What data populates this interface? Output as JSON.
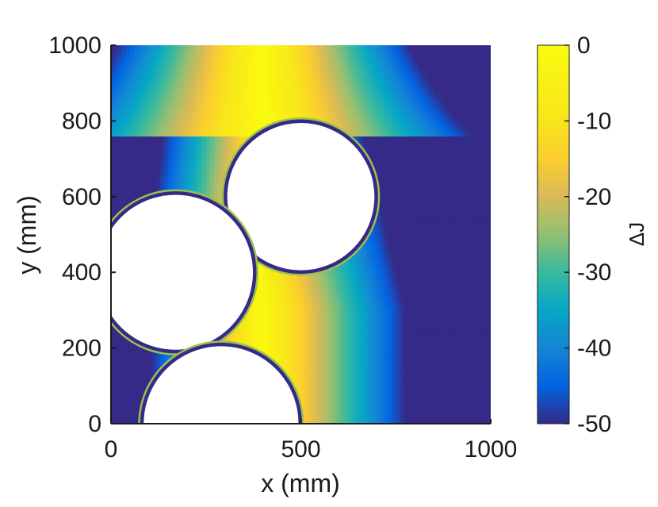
{
  "chart_data": {
    "type": "heatmap",
    "xlabel": "x (mm)",
    "ylabel": "y (mm)",
    "xlim": [
      0,
      1000
    ],
    "ylim": [
      0,
      1000
    ],
    "x_ticks": [
      "0",
      "500",
      "1000"
    ],
    "y_ticks": [
      "0",
      "200",
      "400",
      "600",
      "800",
      "1000"
    ],
    "colorbar": {
      "label": "ΔJ",
      "limits": [
        -50,
        0
      ],
      "ticks": [
        "0",
        "-10",
        "-20",
        "-30",
        "-40",
        "-50"
      ],
      "colormap": "parula"
    },
    "boundary_line_y": 760,
    "voids": [
      {
        "cx": 500,
        "cy": 600,
        "r": 200
      },
      {
        "cx": 170,
        "cy": 400,
        "r": 210
      },
      {
        "cx": 290,
        "cy": 0,
        "r": 210
      }
    ],
    "colors": {
      "axis": "#1a1a1a",
      "void_fill": "#ffffff",
      "void_rim": "#352a87",
      "min_color": "#352a87",
      "max_color": "#f9fb0e"
    }
  }
}
